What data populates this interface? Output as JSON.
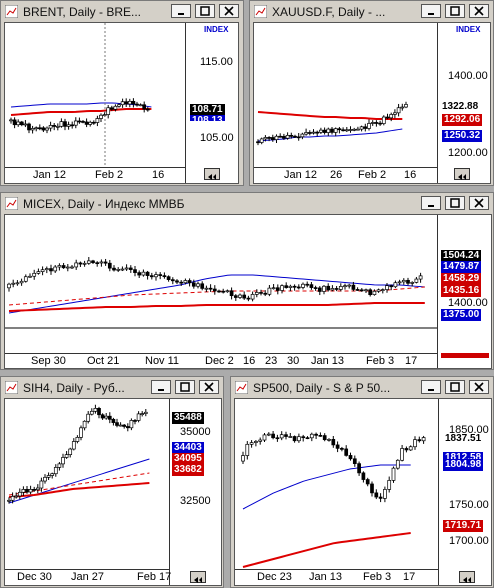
{
  "windows": [
    {
      "id": "brent",
      "title": "BRENT, Daily - BRE...",
      "index": "INDEX",
      "yticks": [
        "115.00",
        "105.00"
      ],
      "xticks": [
        "Jan 12",
        "Feb 2",
        "16"
      ],
      "badges": [
        {
          "text": "108.71",
          "bg": "#000000",
          "fg": "#ffffff"
        },
        {
          "text": "108.13",
          "bg": "#0000cc",
          "fg": "#ffffff"
        }
      ]
    },
    {
      "id": "xauusd",
      "title": "XAUUSD.F, Daily - ...",
      "index": "INDEX",
      "yticks": [
        "1400.00",
        "1200.00"
      ],
      "xticks": [
        "Jan 12",
        "26",
        "Feb 2",
        "16"
      ],
      "badges": [
        {
          "text": "1322.88",
          "bg": "#ffffff",
          "fg": "#000000"
        },
        {
          "text": "1292.06",
          "bg": "#cc0000",
          "fg": "#ffffff"
        },
        {
          "text": "1250.32",
          "bg": "#0000cc",
          "fg": "#ffffff"
        }
      ]
    },
    {
      "id": "micex",
      "title": "MICEX, Daily - Индекс ММВБ",
      "yticks": [
        "1400.00"
      ],
      "xticks": [
        "Sep 30",
        "Oct 21",
        "Nov 11",
        "Dec 2",
        "16",
        "23",
        "30",
        "Jan 13",
        "Feb 3",
        "17"
      ],
      "badges": [
        {
          "text": "1504.24",
          "bg": "#000000",
          "fg": "#ffffff"
        },
        {
          "text": "1479.87",
          "bg": "#0000cc",
          "fg": "#ffffff"
        },
        {
          "text": "1458.29",
          "bg": "#cc0000",
          "fg": "#ffffff"
        },
        {
          "text": "1435.16",
          "bg": "#cc0000",
          "fg": "#ffffff"
        },
        {
          "text": "1375.00",
          "bg": "#0000cc",
          "fg": "#ffffff"
        }
      ]
    },
    {
      "id": "sih4",
      "title": "SIH4, Daily - Руб...",
      "yticks": [
        "35000",
        "32500"
      ],
      "xticks": [
        "Dec 30",
        "Jan 27",
        "Feb 17"
      ],
      "badges": [
        {
          "text": "35488",
          "bg": "#000000",
          "fg": "#ffffff"
        },
        {
          "text": "34403",
          "bg": "#0000cc",
          "fg": "#ffffff"
        },
        {
          "text": "34095",
          "bg": "#cc0000",
          "fg": "#ffffff"
        },
        {
          "text": "33682",
          "bg": "#cc0000",
          "fg": "#ffffff"
        }
      ]
    },
    {
      "id": "sp500",
      "title": "SP500, Daily - S & P 50...",
      "yticks": [
        "1850.00",
        "1750.00",
        "1700.00"
      ],
      "xticks": [
        "Dec 23",
        "Jan 13",
        "Feb 3",
        "17"
      ],
      "badges": [
        {
          "text": "1837.51",
          "bg": "#ffffff",
          "fg": "#000000"
        },
        {
          "text": "1812.58",
          "bg": "#0000cc",
          "fg": "#ffffff"
        },
        {
          "text": "1804.98",
          "bg": "#0000cc",
          "fg": "#ffffff"
        },
        {
          "text": "1719.71",
          "bg": "#cc0000",
          "fg": "#ffffff"
        }
      ]
    }
  ],
  "colors": {
    "up": "#008000",
    "down": "#000000",
    "ma_red": "#dd0000",
    "ma_blue": "#0000cc"
  }
}
